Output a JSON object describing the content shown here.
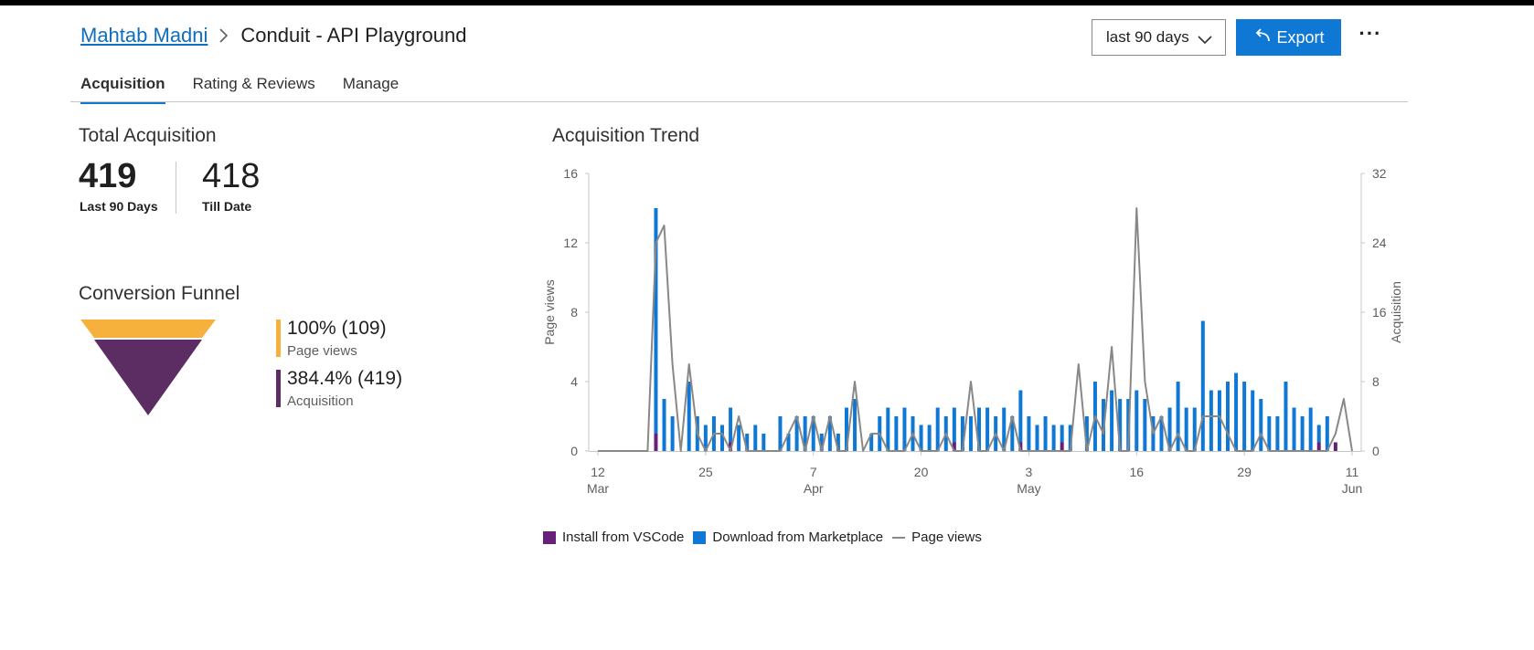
{
  "breadcrumb": {
    "parent": "Mahtab Madni",
    "current": "Conduit - API Playground"
  },
  "header": {
    "range_label": "last 90 days",
    "export_label": "Export",
    "more_label": "···"
  },
  "tabs": [
    {
      "label": "Acquisition",
      "active": true
    },
    {
      "label": "Rating & Reviews",
      "active": false
    },
    {
      "label": "Manage",
      "active": false
    }
  ],
  "total_acquisition": {
    "title": "Total Acquisition",
    "last90_value": "419",
    "last90_label": "Last 90 Days",
    "till_date_value": "418",
    "till_date_label": "Till Date"
  },
  "funnel": {
    "title": "Conversion Funnel",
    "stages": [
      {
        "value": "100% (109)",
        "label": "Page views",
        "color": "#f5b13c"
      },
      {
        "value": "384.4% (419)",
        "label": "Acquisition",
        "color": "#5c2d62"
      }
    ]
  },
  "colors": {
    "accent": "#0f78d4",
    "install": "#68217a",
    "download": "#0f78d4",
    "pageviews": "#8a8886"
  },
  "chart_data": {
    "type": "bar",
    "title": "Acquisition Trend",
    "ylabel": "Page views",
    "y2label": "Acquisition",
    "ylim": [
      0,
      16
    ],
    "y2lim": [
      0,
      32
    ],
    "yticks": [
      0,
      4,
      8,
      12,
      16
    ],
    "y2ticks": [
      0,
      8,
      16,
      24,
      32
    ],
    "xticks": [
      {
        "day": 1,
        "label": "12",
        "sub": "Mar"
      },
      {
        "day": 14,
        "label": "25",
        "sub": ""
      },
      {
        "day": 27,
        "label": "7",
        "sub": "Apr"
      },
      {
        "day": 40,
        "label": "20",
        "sub": ""
      },
      {
        "day": 53,
        "label": "3",
        "sub": "May"
      },
      {
        "day": 66,
        "label": "16",
        "sub": ""
      },
      {
        "day": 79,
        "label": "29",
        "sub": ""
      },
      {
        "day": 92,
        "label": "11",
        "sub": "Jun"
      }
    ],
    "days": 92,
    "series": [
      {
        "name": "Install from VSCode",
        "type": "bar",
        "axis": "right",
        "values": [
          0,
          0,
          0,
          0,
          0,
          0,
          0,
          2,
          0,
          0,
          0,
          0,
          0,
          0,
          0,
          0,
          1,
          0,
          0,
          0,
          0,
          0,
          0,
          0,
          0,
          0,
          0,
          0,
          0,
          0,
          0,
          0,
          0,
          0,
          0,
          0,
          0,
          0,
          0,
          0,
          0,
          0,
          0,
          1,
          0,
          0,
          0,
          0,
          0,
          0,
          0,
          1,
          0,
          0,
          0,
          0,
          1,
          0,
          0,
          0,
          0,
          0,
          0,
          0,
          0,
          0,
          0,
          0,
          0,
          0,
          0,
          0,
          0,
          0,
          0,
          0,
          0,
          0,
          0,
          0,
          0,
          0,
          0,
          0,
          0,
          0,
          0,
          1,
          0,
          1,
          0,
          0
        ]
      },
      {
        "name": "Download from Marketplace",
        "type": "bar",
        "axis": "right",
        "values": [
          0,
          0,
          0,
          0,
          0,
          0,
          0,
          26,
          6,
          4,
          0,
          8,
          4,
          3,
          4,
          3,
          4,
          3,
          2,
          3,
          2,
          0,
          4,
          2,
          4,
          4,
          4,
          2,
          4,
          2,
          5,
          6,
          0,
          2,
          4,
          5,
          4,
          5,
          4,
          3,
          3,
          5,
          4,
          4,
          4,
          4,
          5,
          5,
          4,
          5,
          4,
          6,
          4,
          3,
          4,
          3,
          2,
          3,
          0,
          4,
          8,
          6,
          7,
          6,
          6,
          7,
          6,
          4,
          4,
          5,
          8,
          5,
          5,
          15,
          7,
          7,
          8,
          9,
          8,
          7,
          6,
          4,
          4,
          8,
          5,
          4,
          5,
          2,
          4,
          0,
          0,
          0
        ]
      },
      {
        "name": "Page views",
        "type": "line",
        "axis": "left",
        "values": [
          0,
          0,
          0,
          0,
          0,
          0,
          0,
          12,
          13,
          5,
          0,
          5,
          1,
          0,
          1,
          1,
          0,
          2,
          0,
          0,
          0,
          0,
          0,
          1,
          2,
          0,
          2,
          0,
          2,
          0,
          0,
          4,
          0,
          1,
          1,
          0,
          0,
          0,
          1,
          0,
          0,
          0,
          1,
          0,
          0,
          4,
          0,
          0,
          1,
          0,
          2,
          0,
          0,
          0,
          0,
          0,
          0,
          0,
          5,
          0,
          2,
          1,
          6,
          0,
          0,
          14,
          4,
          1,
          2,
          0,
          1,
          0,
          0,
          2,
          2,
          2,
          1,
          0,
          0,
          0,
          1,
          0,
          0,
          0,
          0,
          0,
          0,
          0,
          0,
          1,
          3,
          0
        ]
      }
    ]
  }
}
